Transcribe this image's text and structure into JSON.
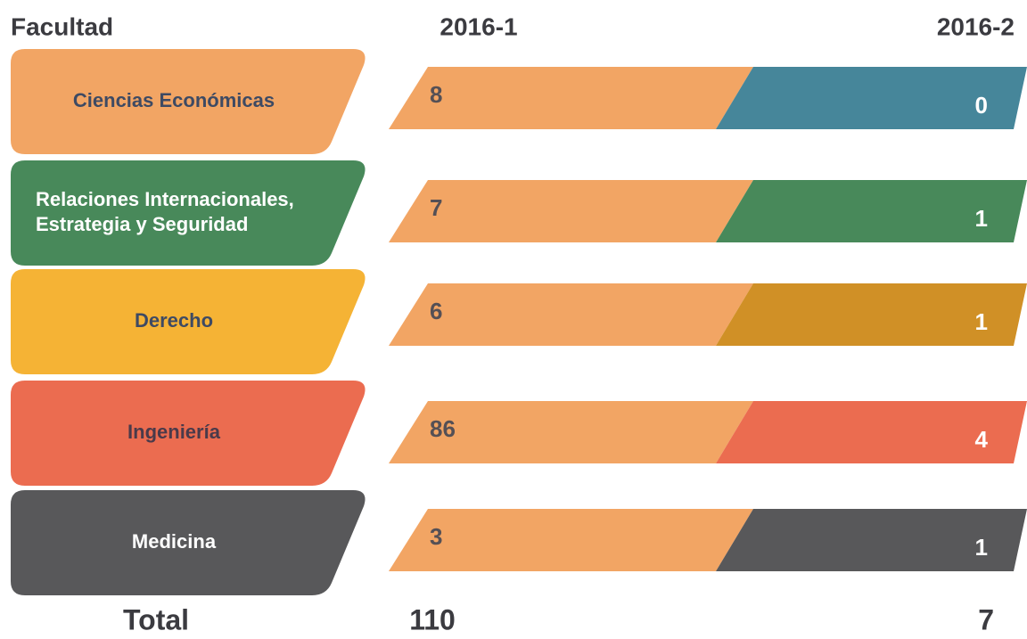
{
  "header": {
    "facultad": "Facultad",
    "period1": "2016-1",
    "period2": "2016-2"
  },
  "rows": [
    {
      "facultad": [
        "Ciencias Económicas"
      ],
      "v1": "8",
      "v2": "0"
    },
    {
      "facultad": [
        "Relaciones Internacionales,",
        "Estrategia y Seguridad"
      ],
      "v1": "7",
      "v2": "1"
    },
    {
      "facultad": [
        "Derecho"
      ],
      "v1": "6",
      "v2": "1"
    },
    {
      "facultad": [
        "Ingeniería"
      ],
      "v1": "86",
      "v2": "4"
    },
    {
      "facultad": [
        "Medicina"
      ],
      "v1": "3",
      "v2": "1"
    }
  ],
  "total": {
    "label": "Total",
    "v1": "110",
    "v2": "7"
  }
}
